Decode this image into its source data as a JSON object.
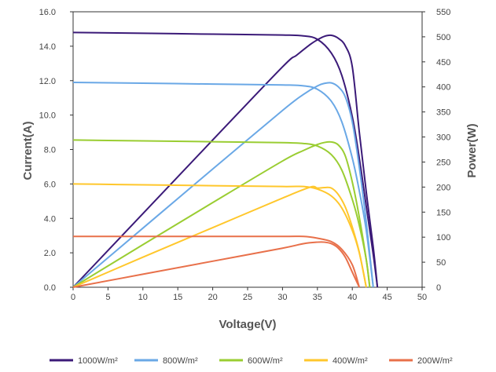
{
  "chart_data": {
    "type": "line",
    "xlabel": "Voltage(V)",
    "ylabel": "Current(A)",
    "y2label": "Power(W)",
    "xlim": [
      0,
      50
    ],
    "ylim": [
      0,
      16
    ],
    "y2lim": [
      0,
      550
    ],
    "x_ticks": [
      "0",
      "5",
      "10",
      "15",
      "20",
      "25",
      "30",
      "35",
      "40",
      "45",
      "50"
    ],
    "y_ticks": [
      "0.0",
      "2.0",
      "4.0",
      "6.0",
      "8.0",
      "10.0",
      "12.0",
      "14.0",
      "16.0"
    ],
    "y2_ticks": [
      "0",
      "50",
      "100",
      "150",
      "200",
      "250",
      "300",
      "350",
      "400",
      "450",
      "500",
      "550"
    ],
    "grid": false,
    "legend_position": "bottom",
    "series": [
      {
        "name": "1000W/m²",
        "color": "#3b1a78",
        "current": [
          [
            0,
            14.8
          ],
          [
            10,
            14.75
          ],
          [
            20,
            14.7
          ],
          [
            30,
            14.65
          ],
          [
            33,
            14.6
          ],
          [
            35,
            14.4
          ],
          [
            37,
            13.6
          ],
          [
            38.5,
            12.3
          ],
          [
            40,
            9.9
          ],
          [
            41,
            7.5
          ],
          [
            42,
            4.7
          ],
          [
            43,
            1.9
          ],
          [
            43.6,
            0
          ]
        ],
        "power": [
          [
            0,
            0
          ],
          [
            10,
            147
          ],
          [
            20,
            294
          ],
          [
            30,
            440
          ],
          [
            32,
            463
          ],
          [
            34,
            485
          ],
          [
            35,
            494
          ],
          [
            36,
            501
          ],
          [
            37,
            503
          ],
          [
            38,
            497
          ],
          [
            39,
            482
          ],
          [
            40,
            440
          ],
          [
            41,
            310
          ],
          [
            42,
            190
          ],
          [
            43,
            80
          ],
          [
            43.6,
            0
          ]
        ]
      },
      {
        "name": "800W/m²",
        "color": "#6aa8e6",
        "current": [
          [
            0,
            11.9
          ],
          [
            10,
            11.85
          ],
          [
            20,
            11.8
          ],
          [
            30,
            11.75
          ],
          [
            33,
            11.7
          ],
          [
            35,
            11.5
          ],
          [
            37,
            10.8
          ],
          [
            38.5,
            9.6
          ],
          [
            40,
            7.5
          ],
          [
            41,
            5.6
          ],
          [
            42,
            3.3
          ],
          [
            43,
            0
          ]
        ],
        "power": [
          [
            0,
            0
          ],
          [
            10,
            118
          ],
          [
            20,
            236
          ],
          [
            30,
            353
          ],
          [
            33,
            385
          ],
          [
            35,
            402
          ],
          [
            36,
            407
          ],
          [
            37,
            408
          ],
          [
            38,
            400
          ],
          [
            39,
            380
          ],
          [
            40,
            330
          ],
          [
            41,
            240
          ],
          [
            42,
            130
          ],
          [
            43,
            0
          ]
        ]
      },
      {
        "name": "600W/m²",
        "color": "#9acd32",
        "current": [
          [
            0,
            8.55
          ],
          [
            10,
            8.5
          ],
          [
            20,
            8.45
          ],
          [
            30,
            8.4
          ],
          [
            33,
            8.35
          ],
          [
            35,
            8.2
          ],
          [
            37,
            7.7
          ],
          [
            38.5,
            6.8
          ],
          [
            40,
            5.1
          ],
          [
            41,
            3.6
          ],
          [
            42,
            1.6
          ],
          [
            42.5,
            0
          ]
        ],
        "power": [
          [
            0,
            0
          ],
          [
            10,
            85
          ],
          [
            20,
            169
          ],
          [
            30,
            252
          ],
          [
            33,
            273
          ],
          [
            35,
            285
          ],
          [
            36,
            289
          ],
          [
            37,
            290
          ],
          [
            38,
            284
          ],
          [
            39,
            262
          ],
          [
            40,
            210
          ],
          [
            41,
            140
          ],
          [
            42,
            55
          ],
          [
            42.5,
            0
          ]
        ]
      },
      {
        "name": "400W/m²",
        "color": "#ffc72c",
        "current": [
          [
            0,
            6.0
          ],
          [
            10,
            5.95
          ],
          [
            20,
            5.9
          ],
          [
            30,
            5.85
          ],
          [
            33,
            5.85
          ],
          [
            35,
            5.7
          ],
          [
            37,
            5.3
          ],
          [
            38.5,
            4.6
          ],
          [
            40,
            3.3
          ],
          [
            41,
            2.0
          ],
          [
            42,
            0
          ]
        ],
        "power": [
          [
            0,
            0
          ],
          [
            10,
            60
          ],
          [
            20,
            119
          ],
          [
            30,
            178
          ],
          [
            34,
            200
          ],
          [
            35,
            198
          ],
          [
            36,
            199
          ],
          [
            37,
            198
          ],
          [
            38,
            185
          ],
          [
            39,
            160
          ],
          [
            40,
            120
          ],
          [
            41,
            70
          ],
          [
            42,
            0
          ]
        ]
      },
      {
        "name": "200W/m²",
        "color": "#e8704a",
        "current": [
          [
            0,
            2.95
          ],
          [
            10,
            2.95
          ],
          [
            20,
            2.95
          ],
          [
            30,
            2.95
          ],
          [
            33,
            2.95
          ],
          [
            35,
            2.85
          ],
          [
            37,
            2.65
          ],
          [
            38.5,
            2.2
          ],
          [
            40,
            1.3
          ],
          [
            41,
            0
          ]
        ],
        "power": [
          [
            0,
            0
          ],
          [
            10,
            26
          ],
          [
            20,
            52
          ],
          [
            30,
            78
          ],
          [
            33,
            87
          ],
          [
            35,
            90
          ],
          [
            36,
            90
          ],
          [
            37,
            87
          ],
          [
            38,
            78
          ],
          [
            39,
            60
          ],
          [
            40,
            30
          ],
          [
            41,
            0
          ]
        ]
      }
    ]
  }
}
